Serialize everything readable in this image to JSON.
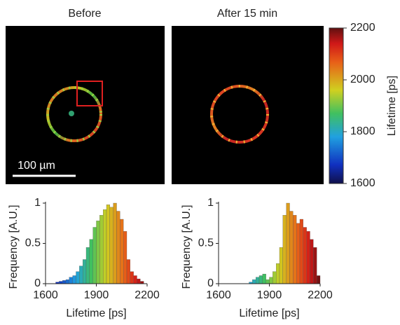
{
  "images": [
    {
      "title": "Before"
    },
    {
      "title": "After 15 min"
    }
  ],
  "scale_bar": "100 µm",
  "colorbar": {
    "label": "Lifetime [ps]",
    "lim": [
      1600,
      2200
    ],
    "ticks": [
      1600,
      1800,
      2000,
      2200
    ]
  },
  "chart_data": [
    {
      "type": "histogram",
      "xlabel": "Lifetime [ps]",
      "ylabel": "Frequency [A.U.]",
      "bins": [
        1660,
        1680,
        1700,
        1720,
        1740,
        1760,
        1780,
        1800,
        1820,
        1840,
        1860,
        1880,
        1900,
        1920,
        1940,
        1960,
        1980,
        2000,
        2020,
        2040,
        2060,
        2080,
        2100,
        2120,
        2140,
        2160,
        2180
      ],
      "values": [
        0.02,
        0.03,
        0.04,
        0.05,
        0.08,
        0.1,
        0.15,
        0.22,
        0.3,
        0.45,
        0.55,
        0.7,
        0.78,
        0.85,
        0.92,
        0.98,
        0.95,
        1.0,
        0.9,
        0.8,
        0.65,
        0.3,
        0.15,
        0.1,
        0.06,
        0.03
      ],
      "xlim": [
        1600,
        2200
      ],
      "xticks": [
        1600,
        1900,
        2200
      ],
      "ylim": [
        0,
        1
      ],
      "yticks": [
        0,
        0.5,
        1
      ]
    },
    {
      "type": "histogram",
      "xlabel": "Lifetime [ps]",
      "ylabel": "Frequency [A.U.]",
      "bins": [
        1780,
        1800,
        1820,
        1840,
        1860,
        1880,
        1900,
        1920,
        1940,
        1960,
        1980,
        2000,
        2020,
        2040,
        2060,
        2080,
        2100,
        2120,
        2140,
        2160,
        2180,
        2200
      ],
      "values": [
        0.02,
        0.05,
        0.08,
        0.1,
        0.12,
        0.05,
        0.08,
        0.15,
        0.25,
        0.45,
        0.85,
        1.0,
        0.9,
        0.85,
        0.75,
        0.8,
        0.7,
        0.65,
        0.55,
        0.45,
        0.1
      ],
      "xlim": [
        1600,
        2200
      ],
      "xticks": [
        1600,
        1900,
        2200
      ],
      "ylim": [
        0,
        1
      ],
      "yticks": [
        0,
        0.5,
        1
      ]
    }
  ]
}
